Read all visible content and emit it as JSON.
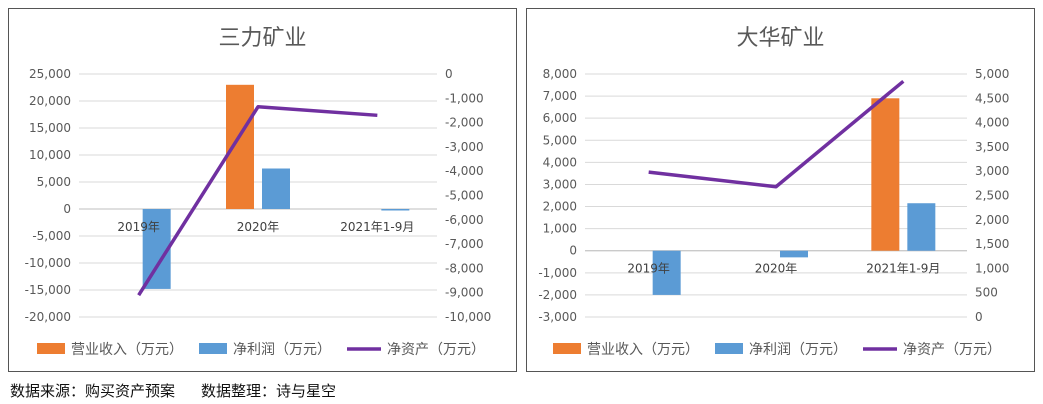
{
  "colors": {
    "revenue": "#ED7D31",
    "profit": "#5B9BD5",
    "assets": "#7030A0",
    "grid": "#D9D9D9",
    "axis_text": "#595959",
    "title_text": "#595959"
  },
  "legend": {
    "revenue": "营业收入（万元）",
    "profit": "净利润（万元）",
    "assets": "净资产（万元）"
  },
  "footer": {
    "source": "数据来源：购买资产预案",
    "editor": "数据整理：诗与星空"
  },
  "chart_data": [
    {
      "type": "bar",
      "title": "三力矿业",
      "categories": [
        "2019年",
        "2020年",
        "2021年1-9月"
      ],
      "series": [
        {
          "name": "营业收入（万元）",
          "axis": "left",
          "type": "bar",
          "values": [
            0,
            23000,
            0
          ]
        },
        {
          "name": "净利润（万元）",
          "axis": "left",
          "type": "bar",
          "values": [
            -14800,
            7500,
            -150
          ]
        },
        {
          "name": "净资产（万元）",
          "axis": "right",
          "type": "line",
          "values": [
            -9100,
            -1350,
            -1700
          ]
        }
      ],
      "y_left": {
        "min": -20000,
        "max": 25000,
        "step": 5000,
        "ticks": [
          "25,000",
          "20,000",
          "15,000",
          "10,000",
          "5,000",
          "0",
          "-5,000",
          "-10,000",
          "-15,000",
          "-20,000"
        ]
      },
      "y_right": {
        "min": -10000,
        "max": 0,
        "step": 1000,
        "ticks": [
          "0",
          "-1,000",
          "-2,000",
          "-3,000",
          "-4,000",
          "-5,000",
          "-6,000",
          "-7,000",
          "-8,000",
          "-9,000",
          "-10,000"
        ]
      },
      "legend_position": "bottom",
      "grid": true
    },
    {
      "type": "bar",
      "title": "大华矿业",
      "categories": [
        "2019年",
        "2020年",
        "2021年1-9月"
      ],
      "series": [
        {
          "name": "营业收入（万元）",
          "axis": "left",
          "type": "bar",
          "values": [
            0,
            0,
            6900
          ]
        },
        {
          "name": "净利润（万元）",
          "axis": "left",
          "type": "bar",
          "values": [
            -2000,
            -300,
            2150
          ]
        },
        {
          "name": "净资产（万元）",
          "axis": "right",
          "type": "line",
          "values": [
            2980,
            2680,
            4850
          ]
        }
      ],
      "y_left": {
        "min": -3000,
        "max": 8000,
        "step": 1000,
        "ticks": [
          "8,000",
          "7,000",
          "6,000",
          "5,000",
          "4,000",
          "3,000",
          "2,000",
          "1,000",
          "0",
          "-1,000",
          "-2,000",
          "-3,000"
        ]
      },
      "y_right": {
        "min": 0,
        "max": 5000,
        "step": 500,
        "ticks": [
          "5,000",
          "4,500",
          "4,000",
          "3,500",
          "3,000",
          "2,500",
          "2,000",
          "1,500",
          "1,000",
          "500",
          "0"
        ]
      },
      "legend_position": "bottom",
      "grid": true
    }
  ]
}
